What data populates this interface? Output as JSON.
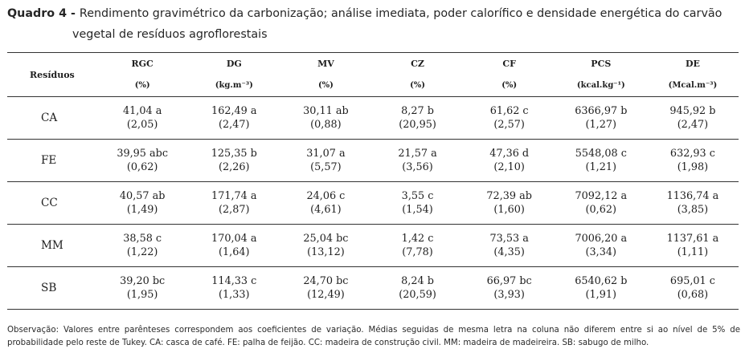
{
  "caption": {
    "label": "Quadro 4 - ",
    "line1": "Rendimento gravimétrico da carbonização; análise imediata, poder calorífico e densidade energética do carvão",
    "line2": "vegetal de resíduos agroflorestais"
  },
  "table": {
    "row_header": "Resíduos",
    "columns": [
      {
        "name": "RGC",
        "unit": "(%)"
      },
      {
        "name": "DG",
        "unit": "(kg.m⁻³)"
      },
      {
        "name": "MV",
        "unit": "(%)"
      },
      {
        "name": "CZ",
        "unit": "(%)"
      },
      {
        "name": "CF",
        "unit": "(%)"
      },
      {
        "name": "PCS",
        "unit": "(kcal.kg⁻¹)"
      },
      {
        "name": "DE",
        "unit": "(Mcal.m⁻³)"
      }
    ],
    "rows": [
      {
        "label": "CA",
        "cells": [
          {
            "value": "41,04 a",
            "cv": "(2,05)"
          },
          {
            "value": "162,49 a",
            "cv": "(2,47)"
          },
          {
            "value": "30,11 ab",
            "cv": "(0,88)"
          },
          {
            "value": "8,27 b",
            "cv": "(20,95)"
          },
          {
            "value": "61,62 c",
            "cv": "(2,57)"
          },
          {
            "value": "6366,97 b",
            "cv": "(1,27)"
          },
          {
            "value": "945,92 b",
            "cv": "(2,47)"
          }
        ]
      },
      {
        "label": "FE",
        "cells": [
          {
            "value": "39,95 abc",
            "cv": "(0,62)"
          },
          {
            "value": "125,35 b",
            "cv": "(2,26)"
          },
          {
            "value": "31,07 a",
            "cv": "(5,57)"
          },
          {
            "value": "21,57 a",
            "cv": "(3,56)"
          },
          {
            "value": "47,36 d",
            "cv": "(2,10)"
          },
          {
            "value": "5548,08 c",
            "cv": "(1,21)"
          },
          {
            "value": "632,93 c",
            "cv": "(1,98)"
          }
        ]
      },
      {
        "label": "CC",
        "cells": [
          {
            "value": "40,57 ab",
            "cv": "(1,49)"
          },
          {
            "value": "171,74 a",
            "cv": "(2,87)"
          },
          {
            "value": "24,06 c",
            "cv": "(4,61)"
          },
          {
            "value": "3,55 c",
            "cv": "(1,54)"
          },
          {
            "value": "72,39 ab",
            "cv": "(1,60)"
          },
          {
            "value": "7092,12 a",
            "cv": "(0,62)"
          },
          {
            "value": "1136,74 a",
            "cv": "(3,85)"
          }
        ]
      },
      {
        "label": "MM",
        "cells": [
          {
            "value": "38,58 c",
            "cv": "(1,22)"
          },
          {
            "value": "170,04 a",
            "cv": "(1,64)"
          },
          {
            "value": "25,04 bc",
            "cv": "(13,12)"
          },
          {
            "value": "1,42 c",
            "cv": "(7,78)"
          },
          {
            "value": "73,53 a",
            "cv": "(4,35)"
          },
          {
            "value": "7006,20 a",
            "cv": "(3,34)"
          },
          {
            "value": "1137,61 a",
            "cv": "(1,11)"
          }
        ]
      },
      {
        "label": "SB",
        "cells": [
          {
            "value": "39,20 bc",
            "cv": "(1,95)"
          },
          {
            "value": "114,33 c",
            "cv": "(1,33)"
          },
          {
            "value": "24,70 bc",
            "cv": "(12,49)"
          },
          {
            "value": "8,24 b",
            "cv": "(20,59)"
          },
          {
            "value": "66,97 bc",
            "cv": "(3,93)"
          },
          {
            "value": "6540,62 b",
            "cv": "(1,91)"
          },
          {
            "value": "695,01 c",
            "cv": "(0,68)"
          }
        ]
      }
    ]
  },
  "note": {
    "line1": "Observação: Valores entre parênteses correspondem aos coeficientes de variação. Médias seguidas de mesma letra na coluna não diferem entre si ao nível de 5% de",
    "line2": "probabilidade pelo reste de Tukey. CA: casca de café. FE: palha de feijão. CC: madeira de construção civil. MM: madeira de madeireira. SB: sabugo de milho."
  }
}
